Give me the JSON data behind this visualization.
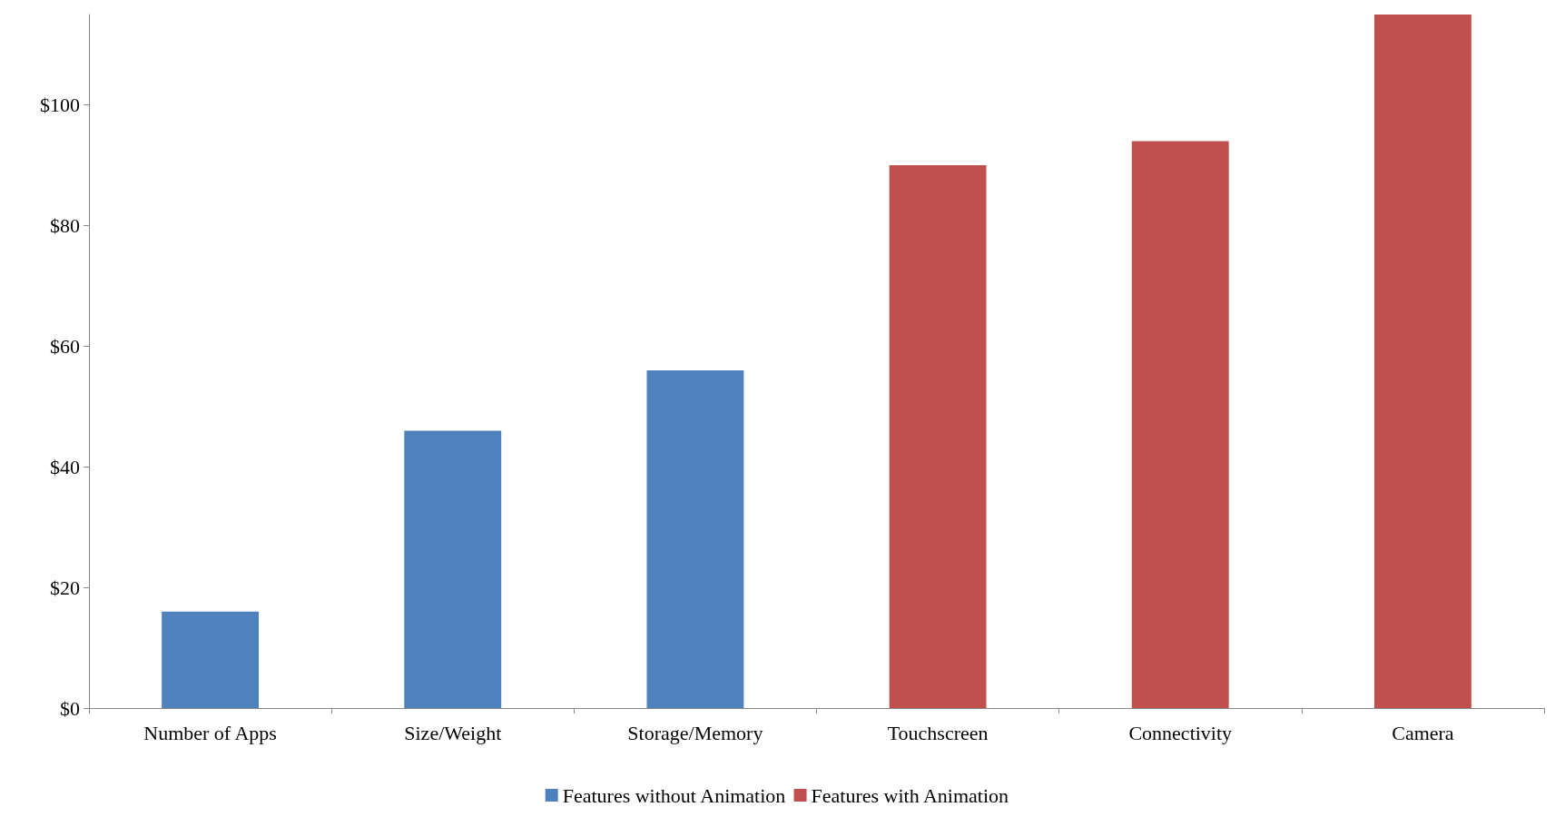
{
  "chart_data": {
    "type": "bar",
    "categories": [
      "Number of Apps",
      "Size/Weight",
      "Storage/Memory",
      "Touchscreen",
      "Connectivity",
      "Camera"
    ],
    "series": [
      {
        "name": "Features without Animation",
        "color": "#4f81bd",
        "values": [
          16,
          46,
          56,
          null,
          null,
          null
        ]
      },
      {
        "name": "Features with Animation",
        "color": "#c0504d",
        "values": [
          null,
          null,
          null,
          90,
          94,
          115
        ]
      }
    ],
    "ylim": [
      0,
      115
    ],
    "yticks": [
      {
        "value": 0,
        "label": "$0"
      },
      {
        "value": 20,
        "label": "$20"
      },
      {
        "value": 40,
        "label": "$40"
      },
      {
        "value": 60,
        "label": "$60"
      },
      {
        "value": 80,
        "label": "$80"
      },
      {
        "value": 100,
        "label": "$100"
      }
    ],
    "grid": false,
    "legend": "bottom"
  }
}
